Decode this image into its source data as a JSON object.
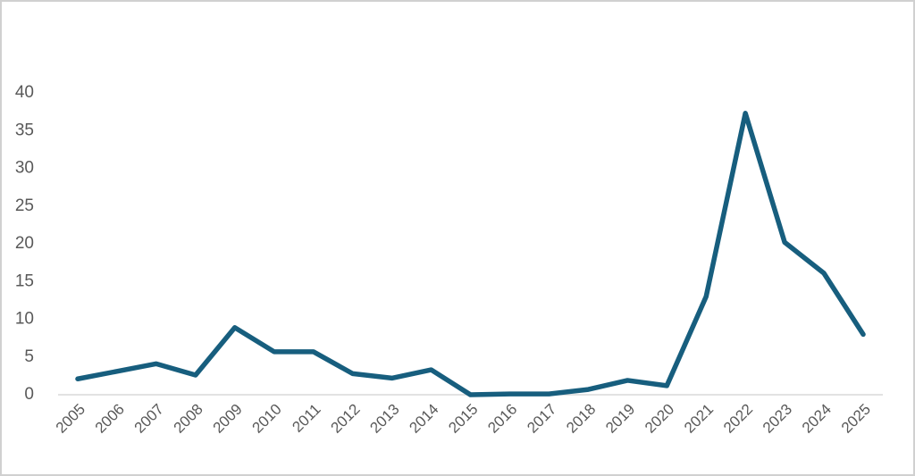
{
  "chart_data": {
    "type": "line",
    "categories": [
      "2005",
      "2006",
      "2007",
      "2008",
      "2009",
      "2010",
      "2011",
      "2012",
      "2013",
      "2014",
      "2015",
      "2016",
      "2017",
      "2018",
      "2019",
      "2020",
      "2021",
      "2022",
      "2023",
      "2024",
      "2025"
    ],
    "values": [
      2.1,
      3.1,
      4.1,
      2.6,
      8.9,
      5.7,
      5.7,
      2.8,
      2.2,
      3.3,
      0,
      0.1,
      0.1,
      0.7,
      1.9,
      1.2,
      13,
      37.3,
      20.2,
      16.1,
      8
    ],
    "color": "#175e7e",
    "ylim": [
      0,
      40
    ],
    "yticks": [
      0,
      5,
      10,
      15,
      20,
      25,
      30,
      35,
      40
    ],
    "grid": false
  }
}
